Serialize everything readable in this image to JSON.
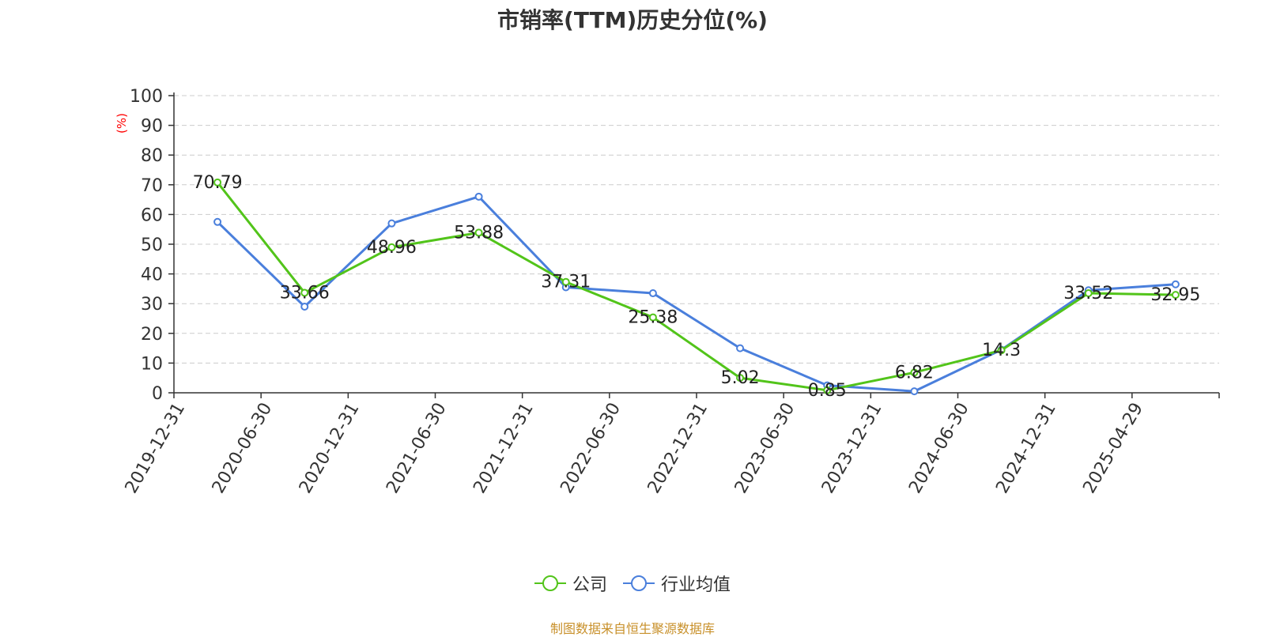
{
  "chart_data": {
    "type": "line",
    "title": "市销率(TTM)历史分位(%)",
    "ylabel": "(%)",
    "ylim": [
      0,
      100
    ],
    "yticks": [
      "0",
      "10",
      "20",
      "30",
      "40",
      "50",
      "60",
      "70",
      "80",
      "90",
      "100"
    ],
    "grid": true,
    "legend_position": "bottom",
    "categories": [
      "2019-12-31",
      "2020-06-30",
      "2020-12-31",
      "2021-06-30",
      "2021-12-31",
      "2022-06-30",
      "2022-12-31",
      "2023-06-30",
      "2023-12-31",
      "2024-06-30",
      "2024-12-31",
      "2025-04-29"
    ],
    "series": [
      {
        "name": "公司",
        "color": "#52c41a",
        "show_labels": true,
        "values": [
          70.79,
          33.66,
          48.96,
          53.88,
          37.31,
          25.38,
          5.02,
          0.85,
          6.82,
          14.3,
          33.52,
          32.95
        ],
        "labels": [
          "70.79",
          "33.66",
          "48.96",
          "53.88",
          "37.31",
          "25.38",
          "5.02",
          "0.85",
          "6.82",
          "14.3",
          "33.52",
          "32.95"
        ]
      },
      {
        "name": "行业均值",
        "color": "#4a7fdc",
        "show_labels": false,
        "values": [
          57.5,
          29.0,
          57.0,
          66.0,
          35.5,
          33.5,
          15.0,
          2.5,
          0.5,
          14.5,
          34.5,
          36.5
        ]
      }
    ],
    "source": "制图数据来自恒生聚源数据库",
    "source_color": "#c8902a",
    "ylabel_color": "#ff0000"
  }
}
